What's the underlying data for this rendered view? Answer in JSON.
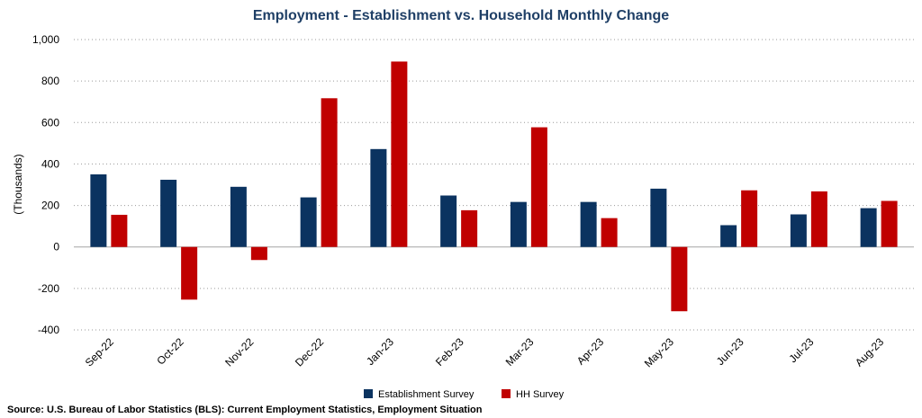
{
  "chart_data": {
    "type": "bar",
    "title": "Employment - Establishment vs. Household Monthly Change",
    "ylabel": "(Thousands)",
    "xlabel": "",
    "categories": [
      "Sep-22",
      "Oct-22",
      "Nov-22",
      "Dec-22",
      "Jan-23",
      "Feb-23",
      "Mar-23",
      "Apr-23",
      "May-23",
      "Jun-23",
      "Jul-23",
      "Aug-23"
    ],
    "series": [
      {
        "name": "Establishment Survey",
        "color": "#0b3360",
        "values": [
          350,
          324,
          290,
          239,
          472,
          248,
          217,
          217,
          281,
          105,
          157,
          187
        ]
      },
      {
        "name": "HH Survey",
        "color": "#c00000",
        "values": [
          155,
          -254,
          -63,
          717,
          894,
          177,
          577,
          139,
          -310,
          273,
          268,
          222
        ]
      }
    ],
    "ylim": [
      -400,
      1000
    ],
    "yticks": [
      -400,
      -200,
      0,
      200,
      400,
      600,
      800,
      1000
    ],
    "ytick_labels": [
      "-400",
      "-200",
      "0",
      "200",
      "400",
      "600",
      "800",
      "1,000"
    ],
    "grid": true,
    "legend_position": "bottom-center"
  },
  "source_text": "Source: U.S. Bureau of Labor Statistics (BLS): Current Employment Statistics, Employment Situation"
}
